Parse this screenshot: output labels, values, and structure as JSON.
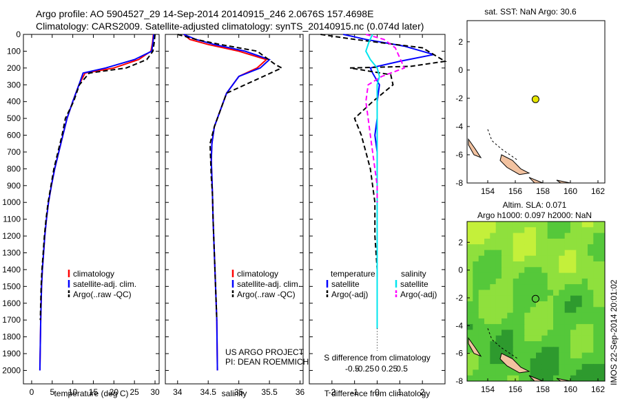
{
  "header": {
    "line1": "Argo profile: AO 5904527_29 14-Sep-2014 20140915_246 2.0676S 157.4698E",
    "line2": "Climatology: CARS2009. Satellite-adjusted climatology: synTS_20140915.nc (0.074d later)"
  },
  "colors": {
    "climatology": "#ff0000",
    "satellite_adj": "#0000ff",
    "argo": "#000000",
    "s_satellite": "#00e5ee",
    "s_argo": "#ff00ff",
    "land": "#f2c2a0"
  },
  "chart_data": [
    {
      "type": "line",
      "id": "temperature",
      "xlabel": "temperature (deg C)",
      "xticks": [
        0,
        5,
        10,
        15,
        20,
        25,
        30
      ],
      "xlim": [
        -2,
        31
      ],
      "ylim": [
        0,
        2080
      ],
      "yticks": [
        0,
        100,
        200,
        300,
        400,
        500,
        600,
        700,
        800,
        900,
        1000,
        1100,
        1200,
        1300,
        1400,
        1500,
        1600,
        1700,
        1800,
        1900,
        2000
      ],
      "legend": [
        "climatology",
        "satellite-adj. clim.",
        "Argo(..raw -QC)"
      ],
      "series": [
        {
          "name": "climatology",
          "style": "solid",
          "color": "#ff0000",
          "x": [
            29.6,
            29.4,
            29.0,
            26.0,
            20.0,
            13.0,
            11.5,
            10.0,
            8.6,
            7.6,
            6.6,
            5.6,
            4.8,
            4.1,
            3.6,
            3.2,
            2.9,
            2.6,
            2.4,
            2.2,
            2.0
          ],
          "y": [
            0,
            50,
            100,
            150,
            200,
            230,
            300,
            400,
            500,
            600,
            700,
            800,
            900,
            1000,
            1100,
            1200,
            1300,
            1400,
            1500,
            1700,
            2000
          ]
        },
        {
          "name": "satellite-adj. clim.",
          "style": "solid",
          "color": "#0000ff",
          "x": [
            29.7,
            29.5,
            29.2,
            25.0,
            18.0,
            12.5,
            11.5,
            10.0,
            8.6,
            7.6,
            6.6,
            5.6,
            4.8,
            4.1,
            3.6,
            3.2,
            2.9,
            2.6,
            2.4,
            2.2,
            2.0
          ],
          "y": [
            0,
            50,
            100,
            150,
            200,
            230,
            300,
            400,
            500,
            600,
            700,
            800,
            900,
            1000,
            1100,
            1200,
            1300,
            1400,
            1500,
            1700,
            2000
          ]
        },
        {
          "name": "Argo(..raw -QC)",
          "style": "dashed",
          "color": "#000000",
          "x": [
            30.0,
            29.8,
            29.5,
            28.0,
            23.0,
            14.0,
            11.6,
            10.2,
            8.2,
            7.4,
            6.4,
            5.4,
            4.7,
            4.0,
            3.5,
            3.1,
            2.8,
            2.5,
            2.3,
            2.1
          ],
          "y": [
            0,
            50,
            100,
            150,
            200,
            230,
            300,
            400,
            500,
            600,
            700,
            800,
            900,
            1000,
            1100,
            1200,
            1300,
            1400,
            1500,
            1700
          ]
        }
      ]
    },
    {
      "type": "line",
      "id": "salinity",
      "xlabel": "salinity",
      "xticks": [
        34,
        34.5,
        35,
        35.5,
        36
      ],
      "xticklabels": [
        "34",
        "34.5",
        "35",
        "35.5",
        "36"
      ],
      "xlim": [
        33.8,
        36.05
      ],
      "ylim": [
        0,
        2080
      ],
      "legend": [
        "climatology",
        "satellite-adj. clim.",
        "Argo(..raw -QC)"
      ],
      "annotations": [
        "US ARGO PROJECT",
        "PI: DEAN ROEMMICH"
      ],
      "series": [
        {
          "name": "climatology",
          "style": "solid",
          "color": "#ff0000",
          "x": [
            34.1,
            34.2,
            34.5,
            35.0,
            35.45,
            35.3,
            35.0,
            34.8,
            34.7,
            34.6,
            34.56,
            34.55,
            34.56,
            34.57,
            34.58,
            34.6,
            34.62,
            34.64,
            34.65
          ],
          "y": [
            0,
            30,
            60,
            100,
            150,
            200,
            250,
            350,
            450,
            550,
            650,
            750,
            850,
            950,
            1100,
            1300,
            1500,
            1700,
            2000
          ]
        },
        {
          "name": "satellite-adj. clim.",
          "style": "solid",
          "color": "#0000ff",
          "x": [
            34.1,
            34.3,
            34.6,
            35.1,
            35.5,
            35.35,
            35.0,
            34.8,
            34.7,
            34.6,
            34.56,
            34.55,
            34.56,
            34.57,
            34.58,
            34.6,
            34.62,
            34.64,
            34.65
          ],
          "y": [
            0,
            30,
            60,
            100,
            150,
            200,
            250,
            350,
            450,
            550,
            650,
            750,
            850,
            950,
            1100,
            1300,
            1500,
            1700,
            2000
          ]
        },
        {
          "name": "Argo(..raw -QC)",
          "style": "dashed",
          "color": "#000000",
          "x": [
            34.0,
            34.3,
            34.7,
            35.3,
            35.6,
            35.7,
            35.4,
            34.8,
            34.7,
            34.6,
            34.53,
            34.54,
            34.55,
            34.57,
            34.58,
            34.6,
            34.62,
            34.64
          ],
          "y": [
            0,
            30,
            60,
            100,
            180,
            200,
            250,
            350,
            450,
            550,
            650,
            750,
            850,
            950,
            1100,
            1300,
            1500,
            1700
          ]
        }
      ]
    },
    {
      "type": "line",
      "id": "difference",
      "xlabel": "T difference from climatology",
      "xlabel_top": "S difference from climatology",
      "xticks": [
        -2,
        -1,
        0,
        1,
        2
      ],
      "xlim": [
        -3,
        3
      ],
      "top_ticks": [
        -0.5,
        -0.25,
        0,
        0.25,
        0.5
      ],
      "top_ticklabels": [
        "-0.5",
        "-0.25",
        "0",
        "0.25",
        "0.5"
      ],
      "ylim": [
        0,
        2080
      ],
      "legend_headers": [
        "temperature",
        "salinity"
      ],
      "legend": [
        "satellite",
        "Argo(-adj)",
        "satellite",
        "Argo(-adj)"
      ],
      "series": [
        {
          "name": "satellite",
          "quantity": "temperature",
          "style": "solid",
          "color": "#0000ff",
          "x": [
            -1.5,
            -0.5,
            1.2,
            2.5,
            1.0,
            -0.3,
            -0.2,
            0.1,
            0.0,
            0.0,
            -0.1,
            0.0,
            0.0,
            0.0,
            0.0,
            0.0,
            0.0,
            0.0,
            0.0
          ],
          "y": [
            0,
            30,
            70,
            120,
            160,
            200,
            230,
            300,
            400,
            500,
            600,
            700,
            800,
            900,
            1000,
            1200,
            1400,
            1600,
            1750
          ]
        },
        {
          "name": "Argo(-adj)",
          "quantity": "temperature",
          "style": "dashed",
          "color": "#000000",
          "x": [
            -2.5,
            -1.0,
            2.0,
            3.0,
            1.5,
            -1.2,
            0.6,
            0.7,
            -0.2,
            -1.0,
            -0.7,
            -0.5,
            -0.3,
            -0.2,
            -0.1,
            -0.1,
            0.0,
            0.0
          ],
          "y": [
            0,
            30,
            80,
            160,
            190,
            200,
            240,
            300,
            400,
            500,
            600,
            700,
            800,
            900,
            1000,
            1200,
            1400,
            1600
          ]
        },
        {
          "name": "satellite",
          "quantity": "salinity",
          "style": "solid",
          "color": "#00e5ee",
          "x": [
            -0.2,
            -0.35,
            -0.5,
            -0.3,
            0.0,
            0.1,
            0.0,
            0.0,
            0.0,
            0.0,
            0.0,
            0.0,
            0.0,
            0.0,
            0.0,
            0.0,
            0.0,
            0.0
          ],
          "y": [
            0,
            40,
            100,
            150,
            200,
            250,
            300,
            400,
            500,
            600,
            700,
            800,
            900,
            1000,
            1200,
            1400,
            1600,
            1750
          ]
        },
        {
          "name": "Argo(-adj)",
          "quantity": "salinity",
          "style": "dashed",
          "color": "#ff00ff",
          "x": [
            -0.5,
            0.3,
            0.8,
            1.2,
            0.2,
            -0.4,
            -0.5,
            -0.4,
            -0.3,
            -0.2,
            -0.1,
            0.0,
            0.0
          ],
          "y": [
            0,
            30,
            80,
            200,
            250,
            300,
            400,
            500,
            600,
            700,
            800,
            900,
            1000
          ]
        }
      ]
    },
    {
      "type": "scatter",
      "id": "sst-map",
      "title": "sat. SST: NaN Argo: 30.6",
      "xticks": [
        154,
        156,
        158,
        160,
        162
      ],
      "xlim": [
        152.5,
        162.5
      ],
      "yticks": [
        2,
        0,
        -2,
        -4,
        -6,
        -8
      ],
      "ylim": [
        -8,
        3.5
      ],
      "points": [
        {
          "x": 157.4698,
          "y": -2.0676
        }
      ],
      "point_color": "#e6e600"
    },
    {
      "type": "heatmap",
      "id": "sla-map",
      "title": "Altim. SLA: 0.071",
      "subtitle": "Argo h1000: 0.097 h2000: NaN",
      "xticks": [
        154,
        156,
        158,
        160,
        162
      ],
      "xlim": [
        152.5,
        162.5
      ],
      "yticks": [
        2,
        0,
        -2,
        -4,
        -6,
        -8
      ],
      "ylim": [
        -8,
        3.5
      ],
      "points": [
        {
          "x": 157.4698,
          "y": -2.0676
        }
      ],
      "colorscale": [
        "#2e9a2e",
        "#55c83a",
        "#8fe03d",
        "#c4f03a"
      ]
    }
  ],
  "watermark": "IMOS 22-Sep-2014 20:01:02"
}
